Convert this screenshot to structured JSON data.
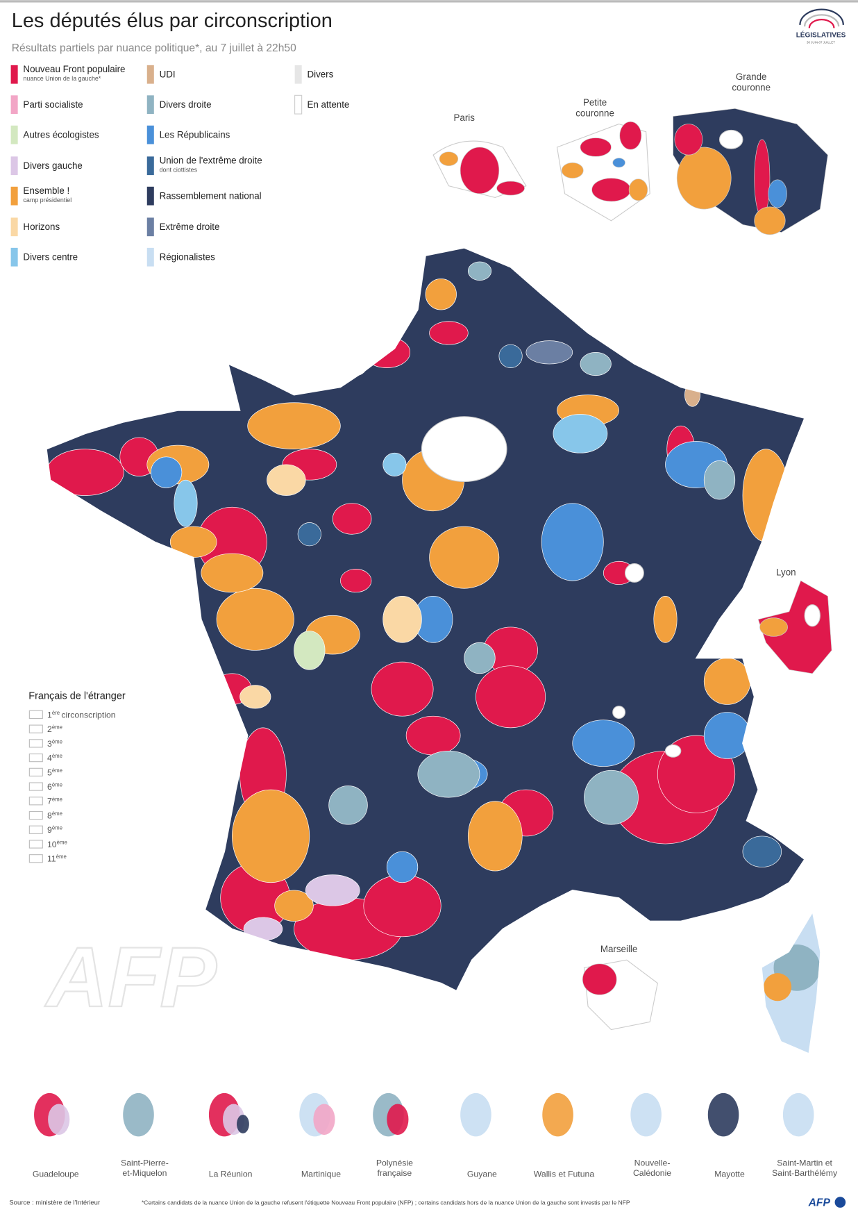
{
  "header": {
    "title": "Les députés élus par circonscription",
    "subtitle": "Résultats partiels par nuance politique*, au 7 juillet à 22h50",
    "logo": "LÉGISLATIVES",
    "logo_dates": "30 JUIN-07 JUILLET"
  },
  "legend": [
    {
      "label": "Nouveau Front populaire",
      "note": "nuance Union de la gauche*"
    },
    {
      "label": "Parti socialiste"
    },
    {
      "label": "Autres écologistes"
    },
    {
      "label": "Divers gauche"
    },
    {
      "label": "Ensemble !",
      "note": "camp présidentiel"
    },
    {
      "label": "Horizons"
    },
    {
      "label": "Divers centre"
    },
    {
      "label": "UDI"
    },
    {
      "label": "Divers droite"
    },
    {
      "label": "Les Républicains"
    },
    {
      "label": "Union de l'extrême droite",
      "note": "dont ciottistes"
    },
    {
      "label": "Rassemblement national"
    },
    {
      "label": "Extrême droite"
    },
    {
      "label": "Régionalistes"
    },
    {
      "label": "Divers"
    },
    {
      "label": "En attente"
    }
  ],
  "insets": {
    "paris": [
      "Paris"
    ],
    "petite_couronne": [
      "Petite",
      "couronne"
    ],
    "grande_couronne": [
      "Grande",
      "couronne"
    ],
    "lyon": [
      "Lyon"
    ],
    "marseille": [
      "Marseille"
    ]
  },
  "abroad": {
    "title": "Français de l'étranger",
    "items": [
      {
        "num": "1",
        "sup": "ère",
        "label": "circonscription"
      },
      {
        "num": "2",
        "sup": "ème"
      },
      {
        "num": "3",
        "sup": "ème"
      },
      {
        "num": "4",
        "sup": "ème"
      },
      {
        "num": "5",
        "sup": "ème"
      },
      {
        "num": "6",
        "sup": "ème"
      },
      {
        "num": "7",
        "sup": "ème"
      },
      {
        "num": "8",
        "sup": "ème"
      },
      {
        "num": "9",
        "sup": "ème"
      },
      {
        "num": "10",
        "sup": "ème"
      },
      {
        "num": "11",
        "sup": "ème"
      }
    ]
  },
  "overseas": [
    [
      "Guadeloupe"
    ],
    [
      "Saint-Pierre-",
      "et-Miquelon"
    ],
    [
      "La Réunion"
    ],
    [
      "Martinique"
    ],
    [
      "Polynésie",
      "française"
    ],
    [
      "Guyane"
    ],
    [
      "Wallis et Futuna"
    ],
    [
      "Nouvelle-",
      "Calédonie"
    ],
    [
      "Mayotte"
    ],
    [
      "Saint-Martin et",
      "Saint-Barthélémy"
    ]
  ],
  "watermark": "AFP",
  "footer": {
    "source": "Source : ministère de l'Intérieur",
    "note": "*Certains candidats de la nuance Union de la gauche refusent l'étiquette Nouveau Front populaire (NFP) ; certains candidats hors de la nuance Union de la gauche sont investis par le NFP",
    "logo": "AFP"
  }
}
